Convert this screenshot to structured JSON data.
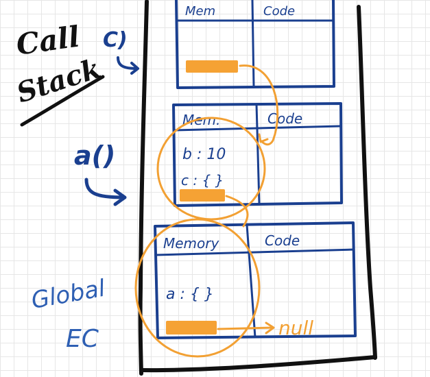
{
  "colors": {
    "ink_black": "#111111",
    "ink_blue": "#1a3f8f",
    "ink_blue_light": "#2e5fb3",
    "orange": "#f2a033",
    "orange_fill": "#f5a234"
  },
  "labels": {
    "call_stack_line1": "Call",
    "call_stack_line2": "Stack",
    "call_stack_paren": "C)",
    "a_call": "a()",
    "global_line1": "Global",
    "global_line2": "EC",
    "null_label": "null"
  },
  "contexts": [
    {
      "id": "c",
      "mem_header": "Mem",
      "code_header": "Code",
      "entries": []
    },
    {
      "id": "a",
      "mem_header": "Mem.",
      "code_header": "Code",
      "entries": [
        "b : 10",
        "c : { }"
      ]
    },
    {
      "id": "global",
      "mem_header": "Memory",
      "code_header": "Code",
      "entries": [
        "a : { }"
      ]
    }
  ]
}
